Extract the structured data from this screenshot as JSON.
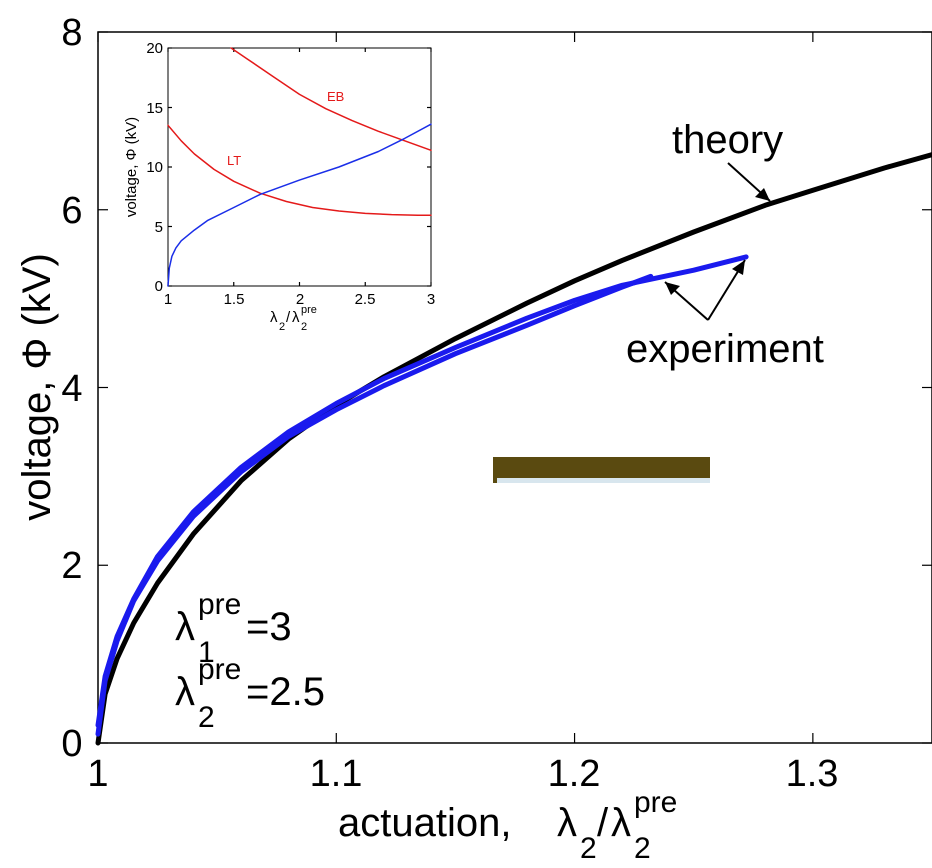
{
  "chart_data": [
    {
      "type": "line",
      "xlabel": "actuation,",
      "xlabel_math": {
        "base": "λ",
        "sub": "2",
        "sep": "/",
        "base2": "λ",
        "sub2": "2",
        "sup2": "pre"
      },
      "ylabel": "voltage, Φ (kV)",
      "xlim": [
        1.0,
        1.35
      ],
      "ylim": [
        0,
        8
      ],
      "xticks": [
        1,
        1.1,
        1.2,
        1.3
      ],
      "xtick_labels": [
        "1",
        "1.1",
        "1.2",
        "1.3"
      ],
      "yticks": [
        0,
        2,
        4,
        6,
        8
      ],
      "ytick_labels": [
        "0",
        "2",
        "4",
        "6",
        "8"
      ],
      "grid": false,
      "series": [
        {
          "name": "theory",
          "color": "#000000",
          "x": [
            1.0,
            1.003,
            1.008,
            1.015,
            1.025,
            1.04,
            1.06,
            1.08,
            1.1,
            1.12,
            1.15,
            1.18,
            1.2,
            1.22,
            1.25,
            1.28,
            1.3,
            1.33,
            1.35
          ],
          "y": [
            0.0,
            0.55,
            0.95,
            1.35,
            1.8,
            2.35,
            2.95,
            3.42,
            3.8,
            4.12,
            4.55,
            4.95,
            5.2,
            5.43,
            5.75,
            6.05,
            6.22,
            6.47,
            6.62
          ]
        },
        {
          "name": "experiment",
          "color": "#1a1aee",
          "x": [
            1.0,
            1.003,
            1.008,
            1.015,
            1.025,
            1.04,
            1.06,
            1.08,
            1.1,
            1.12,
            1.15,
            1.18,
            1.2,
            1.22,
            1.232
          ],
          "y": [
            0.1,
            0.7,
            1.15,
            1.6,
            2.05,
            2.55,
            3.05,
            3.45,
            3.75,
            4.02,
            4.38,
            4.7,
            4.92,
            5.13,
            5.25
          ]
        },
        {
          "name": "experiment",
          "color": "#1a1aee",
          "x": [
            1.0,
            1.003,
            1.008,
            1.015,
            1.025,
            1.04,
            1.06,
            1.08,
            1.1,
            1.12,
            1.15,
            1.18,
            1.2,
            1.22,
            1.25,
            1.272
          ],
          "y": [
            0.2,
            0.75,
            1.2,
            1.62,
            2.1,
            2.6,
            3.1,
            3.5,
            3.82,
            4.1,
            4.45,
            4.78,
            4.98,
            5.15,
            5.32,
            5.47
          ]
        }
      ],
      "annotations": [
        {
          "text": "theory",
          "points_to": [
            1.275,
            6.05
          ]
        },
        {
          "text": "experiment",
          "points_to": [
            [
              1.23,
              5.2
            ],
            [
              1.27,
              5.45
            ]
          ]
        }
      ],
      "parameters": [
        {
          "base": "λ",
          "sub": "1",
          "sup": "pre",
          "value": "=3"
        },
        {
          "base": "λ",
          "sub": "2",
          "sup": "pre",
          "value": "=2.5"
        }
      ]
    },
    {
      "type": "line",
      "inset": true,
      "xlabel_math": {
        "base": "λ",
        "sub": "2",
        "sep": "/",
        "base2": "λ",
        "sub2": "2",
        "sup2": "pre"
      },
      "ylabel": "voltage, Φ (kV)",
      "xlim": [
        1,
        3
      ],
      "ylim": [
        0,
        20
      ],
      "xticks": [
        1,
        1.5,
        2,
        2.5,
        3
      ],
      "xtick_labels": [
        "1",
        "1.5",
        "2",
        "2.5",
        "3"
      ],
      "yticks": [
        0,
        5,
        10,
        15,
        20
      ],
      "ytick_labels": [
        "0",
        "5",
        "10",
        "15",
        "20"
      ],
      "series": [
        {
          "name": "EB",
          "color": "#e41a1a",
          "x": [
            1.48,
            1.6,
            1.8,
            2.0,
            2.2,
            2.4,
            2.6,
            2.8,
            3.0
          ],
          "y": [
            20.0,
            19.1,
            17.6,
            16.1,
            14.9,
            13.9,
            13.0,
            12.2,
            11.4
          ]
        },
        {
          "name": "LT",
          "color": "#e41a1a",
          "x": [
            1.0,
            1.1,
            1.2,
            1.35,
            1.5,
            1.7,
            1.9,
            2.1,
            2.3,
            2.5,
            2.7,
            2.9,
            3.0
          ],
          "y": [
            13.5,
            12.2,
            11.1,
            9.8,
            8.8,
            7.8,
            7.1,
            6.6,
            6.3,
            6.1,
            6.0,
            5.95,
            5.95
          ]
        },
        {
          "name": "",
          "color": "#1a2ee8",
          "x": [
            1.0,
            1.01,
            1.03,
            1.06,
            1.1,
            1.2,
            1.3,
            1.5,
            1.7,
            2.0,
            2.3,
            2.6,
            2.8,
            3.0
          ],
          "y": [
            0.0,
            1.5,
            2.5,
            3.2,
            3.8,
            4.7,
            5.5,
            6.6,
            7.7,
            8.9,
            10.0,
            11.3,
            12.4,
            13.6
          ]
        }
      ],
      "annotations": [
        {
          "text": "EB",
          "series": "EB"
        },
        {
          "text": "LT",
          "series": "LT"
        }
      ]
    }
  ],
  "photo_strip": {
    "color": "#5a4a10",
    "edge": "#d8e6ee"
  }
}
